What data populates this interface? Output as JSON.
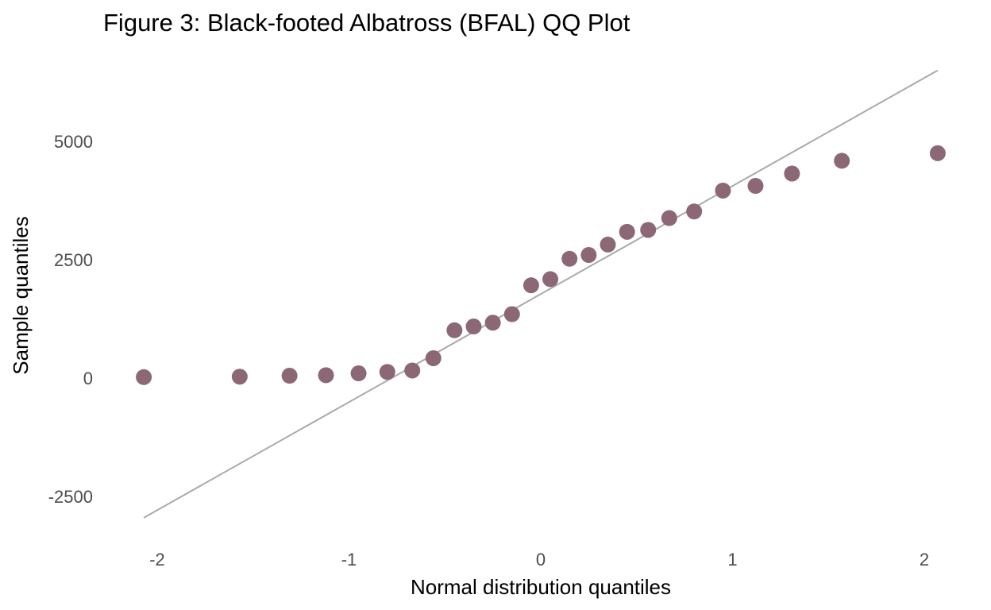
{
  "chart_data": {
    "type": "scatter",
    "title": "Figure 3: Black-footed Albatross (BFAL) QQ Plot",
    "xlabel": "Normal distribution quantiles",
    "ylabel": "Sample quantiles",
    "xlim": [
      -2.1,
      2.1
    ],
    "ylim": [
      -3300,
      6700
    ],
    "x_ticks": [
      {
        "value": -2,
        "label": "-2"
      },
      {
        "value": -1,
        "label": "-1"
      },
      {
        "value": 0,
        "label": "0"
      },
      {
        "value": 1,
        "label": "1"
      },
      {
        "value": 2,
        "label": "2"
      }
    ],
    "y_ticks": [
      {
        "value": -2500,
        "label": "-2500"
      },
      {
        "value": 0,
        "label": "0"
      },
      {
        "value": 2500,
        "label": "2500"
      },
      {
        "value": 5000,
        "label": "5000"
      }
    ],
    "grid": false,
    "point_color": "#8c6877",
    "reference_line": {
      "color": "#aaaaaa",
      "x": [
        -2.07,
        2.07
      ],
      "y": [
        -2950,
        6500
      ]
    },
    "points": [
      {
        "x": -2.07,
        "y": 20
      },
      {
        "x": -1.57,
        "y": 30
      },
      {
        "x": -1.31,
        "y": 50
      },
      {
        "x": -1.12,
        "y": 60
      },
      {
        "x": -0.95,
        "y": 100
      },
      {
        "x": -0.8,
        "y": 130
      },
      {
        "x": -0.67,
        "y": 160
      },
      {
        "x": -0.56,
        "y": 420
      },
      {
        "x": -0.45,
        "y": 1010
      },
      {
        "x": -0.35,
        "y": 1090
      },
      {
        "x": -0.25,
        "y": 1170
      },
      {
        "x": -0.15,
        "y": 1350
      },
      {
        "x": -0.05,
        "y": 1960
      },
      {
        "x": 0.05,
        "y": 2090
      },
      {
        "x": 0.15,
        "y": 2520
      },
      {
        "x": 0.25,
        "y": 2600
      },
      {
        "x": 0.35,
        "y": 2820
      },
      {
        "x": 0.45,
        "y": 3090
      },
      {
        "x": 0.56,
        "y": 3130
      },
      {
        "x": 0.67,
        "y": 3380
      },
      {
        "x": 0.8,
        "y": 3520
      },
      {
        "x": 0.95,
        "y": 3960
      },
      {
        "x": 1.12,
        "y": 4060
      },
      {
        "x": 1.31,
        "y": 4320
      },
      {
        "x": 1.57,
        "y": 4590
      },
      {
        "x": 2.07,
        "y": 4750
      }
    ]
  }
}
